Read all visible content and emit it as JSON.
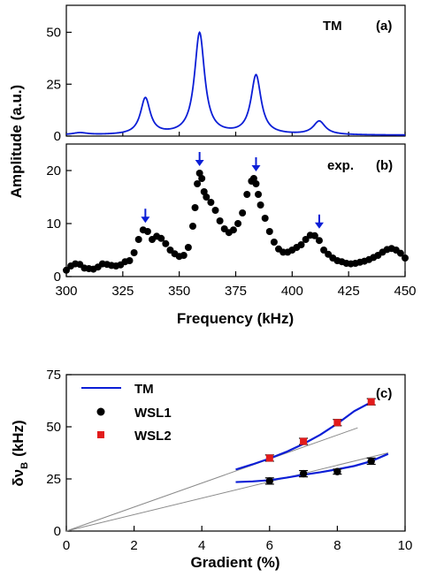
{
  "colors": {
    "tm_blue": "#0b1ed6",
    "exp_black": "#000000",
    "wsl2_red": "#e21b1b",
    "guide_gray": "#8a8a8a"
  },
  "chart_data": [
    {
      "id": "panel-a",
      "type": "line",
      "panel_label": "(a)",
      "series_label": "TM",
      "xlim": [
        300,
        450
      ],
      "ylim": [
        0,
        63
      ],
      "yticks": [
        0,
        25,
        50
      ],
      "series": [
        {
          "name": "TM",
          "lorentzian_peaks": [
            {
              "center": 335,
              "amplitude": 17.5,
              "hwhm": 2.6
            },
            {
              "center": 359,
              "amplitude": 49,
              "hwhm": 2.7
            },
            {
              "center": 384,
              "amplitude": 28.5,
              "hwhm": 2.7
            },
            {
              "center": 412,
              "amplitude": 6.5,
              "hwhm": 3.2
            },
            {
              "center": 306,
              "amplitude": 1.0,
              "hwhm": 4.0
            }
          ],
          "baseline": 0.4
        }
      ],
      "grid": false
    },
    {
      "id": "panel-b",
      "type": "scatter",
      "panel_label": "(b)",
      "series_label": "exp.",
      "xlim": [
        300,
        450
      ],
      "ylim": [
        0,
        25
      ],
      "yticks": [
        0,
        10,
        20
      ],
      "xticks": [
        300,
        325,
        350,
        375,
        400,
        425,
        450
      ],
      "xlabel": "Frequency (kHz)",
      "ylabel": "Amplitude (a.u.)",
      "series": [
        {
          "name": "exp.",
          "x": [
            300,
            302,
            304,
            306,
            308,
            310,
            312,
            314,
            316,
            318,
            320,
            322,
            324,
            326,
            328,
            330,
            332,
            334,
            336,
            338,
            340,
            342,
            344,
            346,
            348,
            350,
            352,
            354,
            356,
            357,
            358,
            359,
            360,
            361,
            362,
            364,
            366,
            368,
            370,
            372,
            374,
            376,
            378,
            380,
            382,
            383,
            384,
            385,
            386,
            388,
            390,
            392,
            394,
            396,
            398,
            400,
            402,
            404,
            406,
            408,
            410,
            412,
            414,
            416,
            418,
            420,
            422,
            424,
            426,
            428,
            430,
            432,
            434,
            436,
            438,
            440,
            442,
            444,
            446,
            448,
            450
          ],
          "y": [
            1.2,
            2.0,
            2.4,
            2.3,
            1.6,
            1.5,
            1.4,
            1.8,
            2.4,
            2.3,
            2.1,
            2.0,
            2.2,
            2.8,
            3.0,
            4.5,
            7.0,
            8.8,
            8.5,
            7.0,
            7.6,
            7.2,
            6.2,
            5.0,
            4.3,
            3.8,
            4.0,
            5.5,
            9.5,
            13.0,
            17.5,
            19.5,
            18.5,
            16.0,
            15.0,
            14.0,
            12.5,
            10.5,
            9.0,
            8.3,
            8.8,
            10.0,
            12.0,
            15.5,
            18.0,
            18.5,
            17.5,
            15.5,
            13.5,
            11.0,
            8.5,
            6.5,
            5.2,
            4.6,
            4.6,
            5.0,
            5.5,
            6.0,
            7.0,
            7.8,
            7.7,
            6.8,
            5.0,
            4.2,
            3.5,
            3.0,
            2.8,
            2.5,
            2.4,
            2.5,
            2.7,
            2.9,
            3.2,
            3.6,
            4.0,
            4.6,
            5.1,
            5.3,
            5.0,
            4.4,
            3.5
          ]
        }
      ],
      "arrows_at": [
        335,
        359,
        384,
        412
      ],
      "grid": false
    },
    {
      "id": "panel-c",
      "type": "scatter",
      "panel_label": "(c)",
      "xlim": [
        0,
        10
      ],
      "ylim": [
        0,
        75
      ],
      "xticks": [
        0,
        2,
        4,
        6,
        8,
        10
      ],
      "yticks": [
        0,
        25,
        50,
        75
      ],
      "xlabel": "Gradient (%)",
      "ylabel": "δν",
      "ylabel_sub": "B",
      "ylabel_unit": "(kHz)",
      "legend_position": "top-left",
      "series": [
        {
          "name": "TM",
          "kind": "line",
          "x": [
            5.0,
            5.5,
            6.0,
            6.5,
            7.0,
            7.5,
            8.0,
            8.5,
            9.0,
            9.5
          ],
          "y": [
            23.5,
            23.8,
            24.4,
            25.6,
            27.0,
            28.2,
            29.6,
            31.2,
            33.5,
            37.0
          ]
        },
        {
          "name": "TM",
          "kind": "line",
          "x": [
            5.0,
            5.5,
            6.0,
            6.5,
            7.0,
            7.5,
            8.0,
            8.5,
            9.0
          ],
          "y": [
            29.5,
            32.0,
            34.8,
            38.0,
            41.8,
            46.2,
            51.5,
            57.5,
            61.8
          ]
        },
        {
          "name": "WSL1",
          "kind": "points",
          "x": [
            6,
            7,
            8,
            9
          ],
          "y": [
            24,
            27.5,
            28.5,
            33.5
          ],
          "err": [
            1.5,
            1.5,
            1.2,
            1.5
          ]
        },
        {
          "name": "WSL2",
          "kind": "points",
          "x": [
            6,
            7,
            8,
            9
          ],
          "y": [
            35,
            43,
            52,
            62
          ],
          "err": [
            1.5,
            1.5,
            1.5,
            1.5
          ]
        }
      ],
      "guide_lines": [
        {
          "x": [
            0,
            9.5
          ],
          "y": [
            0,
            37.5
          ]
        },
        {
          "x": [
            0,
            8.6
          ],
          "y": [
            0,
            49.5
          ]
        }
      ],
      "grid": false
    }
  ]
}
